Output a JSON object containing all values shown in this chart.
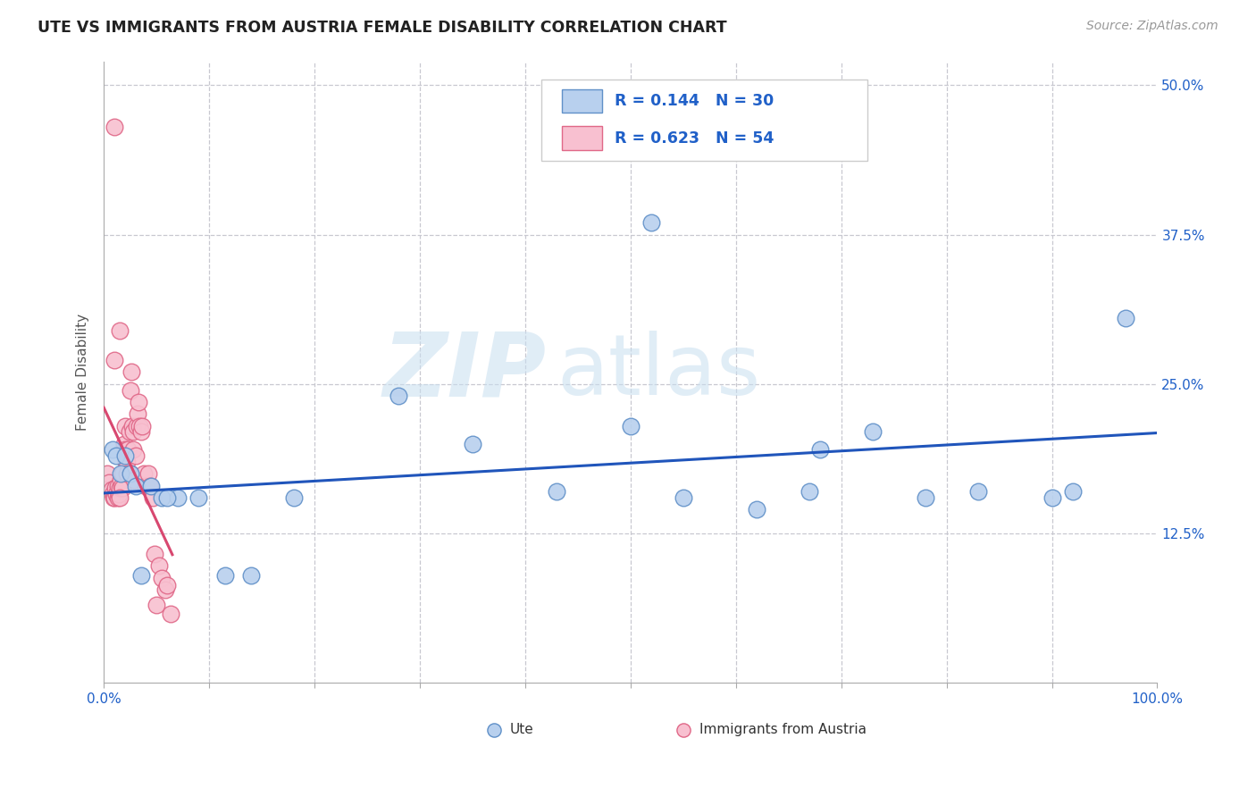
{
  "title": "UTE VS IMMIGRANTS FROM AUSTRIA FEMALE DISABILITY CORRELATION CHART",
  "source": "Source: ZipAtlas.com",
  "ylabel": "Female Disability",
  "watermark_zip": "ZIP",
  "watermark_atlas": "atlas",
  "xlim": [
    0.0,
    1.0
  ],
  "ylim": [
    0.0,
    0.52
  ],
  "xticks": [
    0.0,
    0.1,
    0.2,
    0.3,
    0.4,
    0.5,
    0.6,
    0.7,
    0.8,
    0.9,
    1.0
  ],
  "xticklabels": [
    "0.0%",
    "",
    "",
    "",
    "",
    "",
    "",
    "",
    "",
    "",
    "100.0%"
  ],
  "yticks": [
    0.0,
    0.125,
    0.25,
    0.375,
    0.5
  ],
  "yticklabels_right": [
    "",
    "12.5%",
    "25.0%",
    "37.5%",
    "50.0%"
  ],
  "grid_color": "#c8c8d0",
  "background_color": "#ffffff",
  "ute_color": "#b8d0ee",
  "ute_edge_color": "#6090c8",
  "imm_color": "#f8c0d0",
  "imm_edge_color": "#e06888",
  "ute_R": 0.144,
  "ute_N": 30,
  "imm_R": 0.623,
  "imm_N": 54,
  "legend_color": "#2060c8",
  "ute_line_color": "#2055bb",
  "imm_line_color": "#d84870",
  "ute_x": [
    0.008,
    0.012,
    0.016,
    0.02,
    0.025,
    0.03,
    0.035,
    0.045,
    0.055,
    0.07,
    0.09,
    0.115,
    0.14,
    0.18,
    0.28,
    0.35,
    0.43,
    0.5,
    0.52,
    0.55,
    0.62,
    0.67,
    0.68,
    0.73,
    0.78,
    0.83,
    0.9,
    0.92,
    0.97,
    0.06
  ],
  "ute_y": [
    0.195,
    0.19,
    0.175,
    0.19,
    0.175,
    0.165,
    0.09,
    0.165,
    0.155,
    0.155,
    0.155,
    0.09,
    0.09,
    0.155,
    0.24,
    0.2,
    0.16,
    0.215,
    0.385,
    0.155,
    0.145,
    0.16,
    0.195,
    0.21,
    0.155,
    0.16,
    0.155,
    0.16,
    0.305,
    0.155
  ],
  "imm_x": [
    0.003,
    0.005,
    0.007,
    0.008,
    0.009,
    0.01,
    0.01,
    0.011,
    0.012,
    0.013,
    0.013,
    0.014,
    0.015,
    0.015,
    0.016,
    0.017,
    0.018,
    0.018,
    0.019,
    0.02,
    0.02,
    0.021,
    0.022,
    0.022,
    0.023,
    0.024,
    0.025,
    0.025,
    0.026,
    0.027,
    0.028,
    0.028,
    0.029,
    0.03,
    0.031,
    0.032,
    0.033,
    0.034,
    0.035,
    0.036,
    0.038,
    0.04,
    0.042,
    0.044,
    0.046,
    0.048,
    0.05,
    0.052,
    0.055,
    0.058,
    0.06,
    0.063,
    0.01,
    0.015
  ],
  "imm_y": [
    0.175,
    0.168,
    0.162,
    0.158,
    0.155,
    0.465,
    0.155,
    0.163,
    0.158,
    0.155,
    0.165,
    0.158,
    0.295,
    0.163,
    0.17,
    0.165,
    0.175,
    0.163,
    0.2,
    0.195,
    0.215,
    0.185,
    0.185,
    0.175,
    0.195,
    0.21,
    0.245,
    0.175,
    0.26,
    0.215,
    0.195,
    0.21,
    0.17,
    0.19,
    0.215,
    0.225,
    0.235,
    0.215,
    0.21,
    0.215,
    0.175,
    0.165,
    0.175,
    0.165,
    0.155,
    0.108,
    0.065,
    0.098,
    0.088,
    0.078,
    0.082,
    0.058,
    0.27,
    0.155
  ]
}
